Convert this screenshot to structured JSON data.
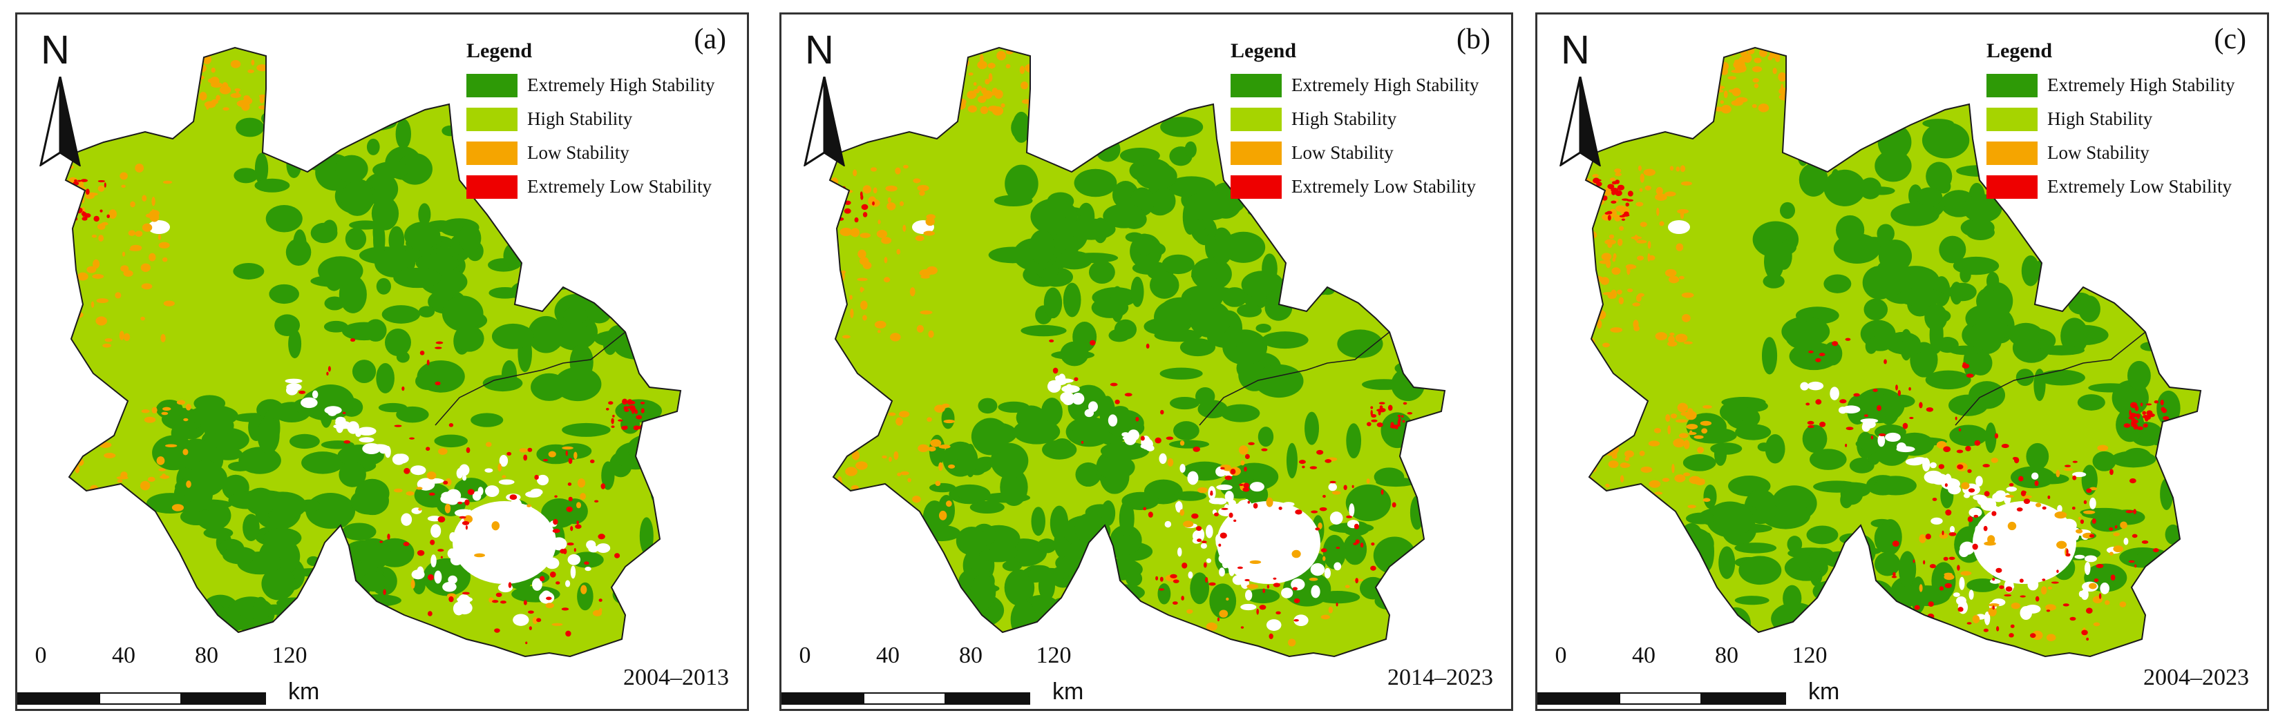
{
  "legend": {
    "title": "Legend",
    "items": [
      {
        "label": "Extremely High Stability",
        "color": "#2e9a06"
      },
      {
        "label": "High Stability",
        "color": "#a6d400"
      },
      {
        "label": "Low Stability",
        "color": "#f5a500"
      },
      {
        "label": "Extremely Low Stability",
        "color": "#ee0000"
      }
    ]
  },
  "north_label": "N",
  "scale": {
    "ticks": [
      "0",
      "40",
      "80",
      "120"
    ],
    "unit": "km"
  },
  "panels": [
    {
      "tag": "(a)",
      "period": "2004–2013"
    },
    {
      "tag": "(b)",
      "period": "2014–2023"
    },
    {
      "tag": "(c)",
      "period": "2004–2023"
    }
  ],
  "colors": {
    "border": "#333333",
    "boundary": "#1a1a1a",
    "urban": "#ffffff"
  }
}
